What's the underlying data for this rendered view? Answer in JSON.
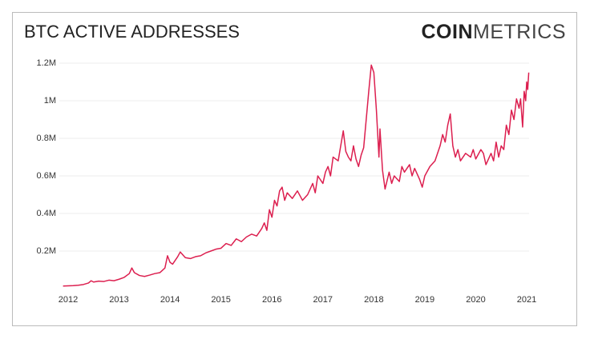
{
  "chart_data": {
    "type": "line",
    "title": "BTC ACTIVE ADDRESSES",
    "logo_bold": "COIN",
    "logo_light": "METRICS",
    "color": "#dc1f4f",
    "grid": true,
    "xlim": [
      2011.89,
      2021.1
    ],
    "xticks": [
      2012,
      2013,
      2014,
      2015,
      2016,
      2017,
      2018,
      2019,
      2020,
      2021
    ],
    "ylim": [
      0,
      1200000
    ],
    "yticks": [
      {
        "value": 200000,
        "label": "0.2M"
      },
      {
        "value": 400000,
        "label": "0.4M"
      },
      {
        "value": 600000,
        "label": "0.6M"
      },
      {
        "value": 800000,
        "label": "0.8M"
      },
      {
        "value": 1000000,
        "label": "1M"
      },
      {
        "value": 1200000,
        "label": "1.2M"
      }
    ],
    "x": [
      2011.9,
      2012.0,
      2012.1,
      2012.2,
      2012.3,
      2012.4,
      2012.45,
      2012.5,
      2012.6,
      2012.7,
      2012.8,
      2012.9,
      2013.0,
      2013.1,
      2013.2,
      2013.25,
      2013.3,
      2013.4,
      2013.5,
      2013.6,
      2013.7,
      2013.8,
      2013.9,
      2013.95,
      2014.0,
      2014.05,
      2014.15,
      2014.2,
      2014.3,
      2014.4,
      2014.5,
      2014.6,
      2014.7,
      2014.8,
      2014.9,
      2015.0,
      2015.1,
      2015.2,
      2015.3,
      2015.4,
      2015.5,
      2015.6,
      2015.7,
      2015.8,
      2015.85,
      2015.9,
      2015.95,
      2016.0,
      2016.05,
      2016.1,
      2016.15,
      2016.2,
      2016.25,
      2016.3,
      2016.4,
      2016.5,
      2016.6,
      2016.7,
      2016.8,
      2016.85,
      2016.9,
      2017.0,
      2017.05,
      2017.1,
      2017.15,
      2017.2,
      2017.3,
      2017.35,
      2017.4,
      2017.45,
      2017.5,
      2017.55,
      2017.6,
      2017.65,
      2017.7,
      2017.75,
      2017.8,
      2017.85,
      2017.9,
      2017.95,
      2018.0,
      2018.05,
      2018.1,
      2018.12,
      2018.17,
      2018.22,
      2018.3,
      2018.35,
      2018.4,
      2018.5,
      2018.55,
      2018.6,
      2018.7,
      2018.75,
      2018.8,
      2018.9,
      2018.95,
      2019.0,
      2019.1,
      2019.2,
      2019.3,
      2019.35,
      2019.4,
      2019.45,
      2019.5,
      2019.55,
      2019.6,
      2019.65,
      2019.7,
      2019.8,
      2019.9,
      2019.95,
      2020.0,
      2020.1,
      2020.15,
      2020.2,
      2020.3,
      2020.35,
      2020.4,
      2020.45,
      2020.5,
      2020.55,
      2020.6,
      2020.65,
      2020.7,
      2020.75,
      2020.8,
      2020.85,
      2020.88,
      2020.92,
      2020.95,
      2020.98,
      2021.0,
      2021.02,
      2021.04
    ],
    "values": [
      14000,
      15000,
      16000,
      18000,
      22000,
      30000,
      42000,
      35000,
      40000,
      38000,
      45000,
      42000,
      50000,
      60000,
      80000,
      110000,
      85000,
      70000,
      65000,
      72000,
      80000,
      85000,
      110000,
      175000,
      140000,
      130000,
      170000,
      195000,
      165000,
      160000,
      170000,
      175000,
      190000,
      200000,
      210000,
      215000,
      240000,
      230000,
      265000,
      250000,
      275000,
      290000,
      280000,
      320000,
      350000,
      310000,
      420000,
      380000,
      470000,
      440000,
      520000,
      540000,
      470000,
      510000,
      480000,
      520000,
      470000,
      500000,
      560000,
      510000,
      600000,
      560000,
      620000,
      650000,
      600000,
      700000,
      680000,
      760000,
      840000,
      730000,
      700000,
      680000,
      760000,
      690000,
      650000,
      710000,
      750000,
      900000,
      1050000,
      1190000,
      1150000,
      950000,
      700000,
      850000,
      630000,
      530000,
      620000,
      560000,
      600000,
      570000,
      650000,
      620000,
      660000,
      600000,
      640000,
      580000,
      540000,
      600000,
      650000,
      680000,
      760000,
      820000,
      780000,
      870000,
      930000,
      760000,
      700000,
      740000,
      680000,
      720000,
      700000,
      740000,
      690000,
      740000,
      720000,
      660000,
      720000,
      680000,
      780000,
      700000,
      760000,
      740000,
      870000,
      820000,
      950000,
      900000,
      1010000,
      960000,
      1010000,
      860000,
      1050000,
      1000000,
      1100000,
      1060000,
      1150000
    ]
  }
}
